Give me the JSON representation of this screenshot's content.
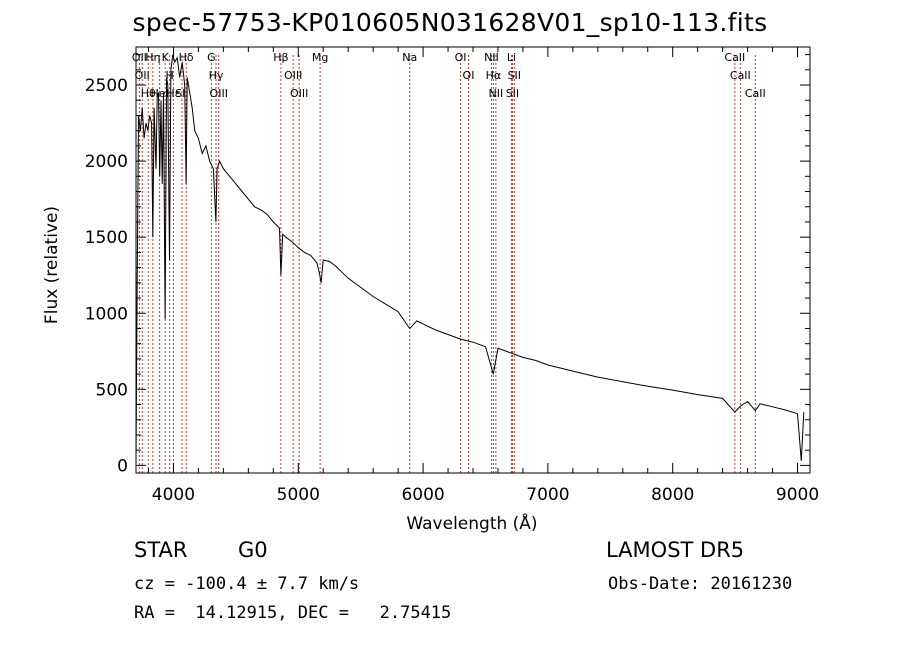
{
  "title": "spec-57753-KP010605N031628V01_sp10-113.fits",
  "info": {
    "class": "STAR",
    "subclass": "G0",
    "survey": "LAMOST DR5",
    "cz": "cz = -100.4 ± 7.7 km/s",
    "obs_date": "Obs-Date: 20161230",
    "coords": "RA =  14.12915, DEC =   2.75415"
  },
  "chart_data": {
    "type": "line",
    "title": "spec-57753-KP010605N031628V01_sp10-113.fits",
    "xlabel": "Wavelength (Å)",
    "ylabel": "Flux (relative)",
    "xlim": [
      3700,
      9100
    ],
    "ylim": [
      -50,
      2750
    ],
    "xticks": [
      4000,
      5000,
      6000,
      7000,
      8000,
      9000
    ],
    "yticks": [
      0,
      500,
      1000,
      1500,
      2000,
      2500
    ],
    "grid": false,
    "colors": {
      "spectrum": "#000000",
      "lines": "#c0392b"
    },
    "series": [
      {
        "x": [
          3700,
          3710,
          3720,
          3735,
          3750,
          3765,
          3780,
          3795,
          3810,
          3825,
          3835,
          3845,
          3860,
          3870,
          3880,
          3890,
          3900,
          3910,
          3920,
          3933,
          3945,
          3955,
          3968,
          3980,
          3995,
          4010,
          4030,
          4050,
          4070,
          4090,
          4101,
          4110,
          4130,
          4150,
          4170,
          4200,
          4230,
          4260,
          4290,
          4320,
          4340,
          4350,
          4370,
          4400,
          4450,
          4500,
          4550,
          4600,
          4650,
          4700,
          4750,
          4800,
          4850,
          4861,
          4875,
          4900,
          4950,
          5000,
          5050,
          5100,
          5150,
          5170,
          5183,
          5200,
          5250,
          5300,
          5350,
          5400,
          5500,
          5600,
          5700,
          5800,
          5893,
          5950,
          6000,
          6100,
          6200,
          6300,
          6400,
          6500,
          6563,
          6600,
          6700,
          6800,
          6900,
          7000,
          7200,
          7400,
          7600,
          7800,
          8000,
          8200,
          8400,
          8498,
          8542,
          8600,
          8662,
          8700,
          8800,
          8900,
          9000,
          9030,
          9050
        ],
        "y": [
          20,
          1200,
          2300,
          2200,
          2350,
          2150,
          2250,
          2200,
          2300,
          2250,
          1500,
          2350,
          1950,
          2420,
          2450,
          1900,
          2400,
          1850,
          2450,
          960,
          2550,
          2500,
          1350,
          2600,
          2700,
          2650,
          2680,
          2550,
          2650,
          2500,
          1850,
          2550,
          2450,
          2350,
          2200,
          2150,
          2050,
          2100,
          2000,
          1950,
          1600,
          1950,
          2000,
          1950,
          1900,
          1850,
          1800,
          1750,
          1700,
          1680,
          1650,
          1600,
          1560,
          1250,
          1520,
          1500,
          1470,
          1430,
          1400,
          1380,
          1330,
          1260,
          1200,
          1350,
          1340,
          1310,
          1270,
          1230,
          1170,
          1110,
          1060,
          1010,
          900,
          950,
          930,
          890,
          860,
          830,
          810,
          780,
          600,
          770,
          740,
          710,
          690,
          660,
          620,
          580,
          550,
          520,
          495,
          465,
          440,
          350,
          390,
          420,
          360,
          405,
          385,
          365,
          340,
          30,
          350
        ]
      }
    ],
    "lines": [
      {
        "wave": 3727,
        "label": "OII"
      },
      {
        "wave": 3750,
        "label": "OII"
      },
      {
        "wave": 3798,
        "label": "Hθ"
      },
      {
        "wave": 3835,
        "label": "Hη"
      },
      {
        "wave": 3889,
        "label": "HeI"
      },
      {
        "wave": 3934,
        "label": "K"
      },
      {
        "wave": 3970,
        "label": "H"
      },
      {
        "wave": 4000,
        "label": "Hε"
      },
      {
        "wave": 4068,
        "label": "SII"
      },
      {
        "wave": 4102,
        "label": "Hδ"
      },
      {
        "wave": 4304,
        "label": "G"
      },
      {
        "wave": 4341,
        "label": "Hγ"
      },
      {
        "wave": 4363,
        "label": "OIII"
      },
      {
        "wave": 4861,
        "label": "Hβ"
      },
      {
        "wave": 4959,
        "label": "OIII"
      },
      {
        "wave": 5007,
        "label": "OIII"
      },
      {
        "wave": 5175,
        "label": "Mg"
      },
      {
        "wave": 5893,
        "label": "Na"
      },
      {
        "wave": 6300,
        "label": "OI"
      },
      {
        "wave": 6364,
        "label": "OI"
      },
      {
        "wave": 6548,
        "label": "NII"
      },
      {
        "wave": 6563,
        "label": "Hα"
      },
      {
        "wave": 6583,
        "label": "NII"
      },
      {
        "wave": 6708,
        "label": "Li"
      },
      {
        "wave": 6716,
        "label": "SII"
      },
      {
        "wave": 6731,
        "label": "SII"
      },
      {
        "wave": 8498,
        "label": "CaII"
      },
      {
        "wave": 8542,
        "label": "CaII"
      },
      {
        "wave": 8662,
        "label": "CaII"
      }
    ]
  }
}
